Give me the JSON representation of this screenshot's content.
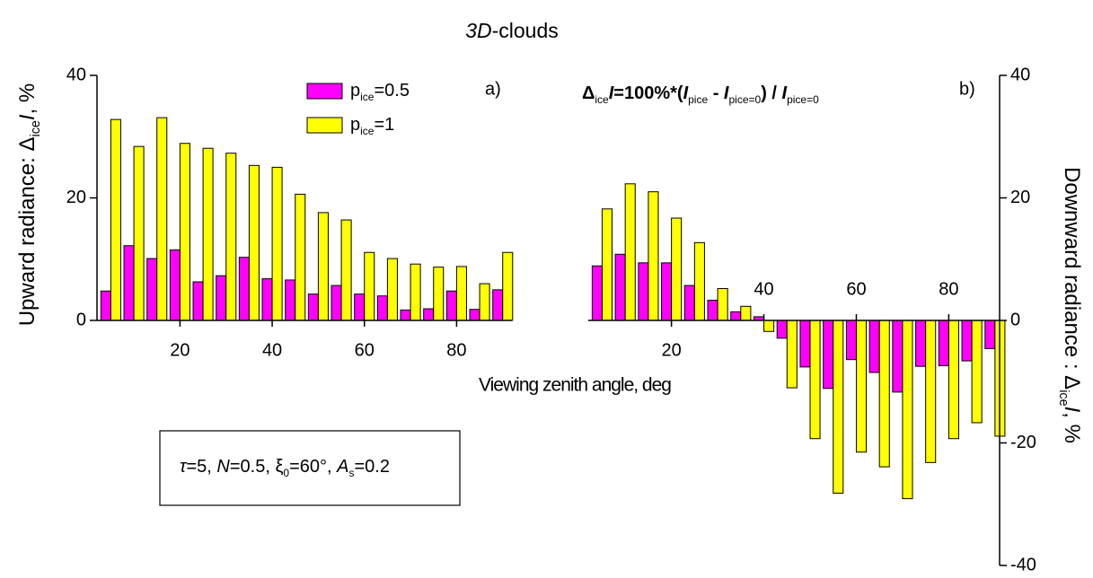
{
  "title": [
    {
      "text": "3D",
      "italic": true
    },
    {
      "text": "-clouds"
    }
  ],
  "x_label": "Viewing zenith angle, deg",
  "annotation": [
    {
      "text": "τ",
      "italic": true
    },
    {
      "text": "=5, "
    },
    {
      "text": "N",
      "italic": true
    },
    {
      "text": "=0.5, ξ"
    },
    {
      "text": "0",
      "sub": true
    },
    {
      "text": "=60°, "
    },
    {
      "text": "A",
      "italic": true
    },
    {
      "text": "s",
      "sub": true
    },
    {
      "text": "=0.2"
    }
  ],
  "chart_data": [
    {
      "type": "bar",
      "panel_label": "a)",
      "y_label": [
        {
          "text": "Upward radiance:  Δ"
        },
        {
          "text": "ice",
          "sub": true
        },
        {
          "text": "I",
          "italic": true
        },
        {
          "text": ", %"
        }
      ],
      "x": [
        5,
        10,
        15,
        20,
        25,
        30,
        35,
        40,
        45,
        50,
        55,
        60,
        65,
        70,
        75,
        80,
        85,
        90
      ],
      "series": [
        {
          "name": [
            {
              "text": "p"
            },
            {
              "text": "ice",
              "sub": true
            },
            {
              "text": "=0.5"
            }
          ],
          "color": "#ff00ff",
          "values": [
            4.8,
            12.2,
            10.1,
            11.5,
            6.3,
            7.3,
            10.3,
            6.8,
            6.6,
            4.3,
            5.7,
            4.3,
            4.0,
            1.7,
            1.9,
            4.8,
            1.8,
            5.0
          ]
        },
        {
          "name": [
            {
              "text": "p"
            },
            {
              "text": "ice",
              "sub": true
            },
            {
              "text": "=1"
            }
          ],
          "color": "#ffff00",
          "values": [
            32.8,
            28.4,
            33.1,
            28.9,
            28.1,
            27.3,
            25.3,
            25.0,
            20.6,
            17.6,
            16.4,
            11.1,
            10.1,
            9.2,
            8.7,
            8.8,
            6.0,
            11.1
          ]
        }
      ],
      "xlim": [
        2,
        92
      ],
      "xticks": [
        20,
        40,
        60,
        80
      ],
      "ylim": [
        0,
        40
      ],
      "yticks": [
        0,
        20,
        40
      ]
    },
    {
      "type": "bar",
      "panel_label": "b)",
      "formula": [
        {
          "text": "Δ"
        },
        {
          "text": "ice",
          "sub": true
        },
        {
          "text": "I",
          "italic": true
        },
        {
          "text": "=100%*("
        },
        {
          "text": "I",
          "italic": true
        },
        {
          "text": "pice",
          "sub": true
        },
        {
          "text": " - "
        },
        {
          "text": "I",
          "italic": true
        },
        {
          "text": "pice=0",
          "sub": true
        },
        {
          "text": ") / "
        },
        {
          "text": "I",
          "italic": true
        },
        {
          "text": "pice=0",
          "sub": true
        }
      ],
      "y_label": [
        {
          "text": "Downward radiance :  Δ"
        },
        {
          "text": "ice",
          "sub": true
        },
        {
          "text": "I",
          "italic": true
        },
        {
          "text": ", %"
        }
      ],
      "x": [
        5,
        10,
        15,
        20,
        25,
        30,
        35,
        40,
        45,
        50,
        55,
        60,
        65,
        70,
        75,
        80,
        85,
        90
      ],
      "series": [
        {
          "color": "#ff00ff",
          "values": [
            8.9,
            10.8,
            9.4,
            9.4,
            5.7,
            3.3,
            1.4,
            0.6,
            -2.9,
            -7.6,
            -11.1,
            -6.4,
            -8.5,
            -11.7,
            -7.5,
            -7.4,
            -6.6,
            -4.6
          ]
        },
        {
          "color": "#ffff00",
          "values": [
            18.2,
            22.3,
            21.0,
            16.7,
            12.7,
            5.2,
            2.3,
            -1.8,
            -11.0,
            -19.3,
            -28.2,
            -21.5,
            -23.9,
            -29.1,
            -23.2,
            -19.3,
            -16.7,
            -18.9
          ]
        }
      ],
      "xlim": [
        2,
        91
      ],
      "xticks": [
        20,
        40,
        60,
        80
      ],
      "ylim": [
        -40,
        40
      ],
      "yticks": [
        -40,
        -20,
        0,
        20,
        40
      ]
    }
  ]
}
